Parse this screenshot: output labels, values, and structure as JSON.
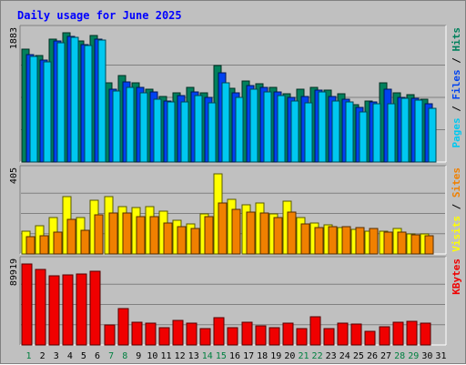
{
  "chart_data": {
    "type": "bar",
    "title": "Daily usage for June 2025",
    "categories": [
      "1",
      "2",
      "3",
      "4",
      "5",
      "6",
      "7",
      "8",
      "9",
      "10",
      "11",
      "12",
      "13",
      "14",
      "15",
      "16",
      "17",
      "18",
      "19",
      "20",
      "21",
      "22",
      "23",
      "24",
      "25",
      "26",
      "27",
      "28",
      "29",
      "30",
      "31"
    ],
    "weekend_days": [
      "1",
      "7",
      "8",
      "14",
      "15",
      "21",
      "22",
      "28",
      "29"
    ],
    "panels": [
      {
        "name": "pages-files-hits",
        "ymax_label": "1883",
        "ylim": [
          0,
          1883
        ],
        "legend": [
          "Pages",
          "Files",
          "Hits"
        ],
        "series": [
          {
            "name": "Hits",
            "color": "#00805c",
            "values": [
              1642,
              1546,
              1792,
              1883,
              1765,
              1838,
              1150,
              1263,
              1157,
              1056,
              950,
              1010,
              1085,
              1005,
              1405,
              1074,
              1178,
              1138,
              1084,
              992,
              1064,
              1081,
              1046,
              1001,
              842,
              890,
              1157,
              1009,
              977,
              921,
              null
            ]
          },
          {
            "name": "Files",
            "color": "#0042f0",
            "values": [
              1565,
              1490,
              1760,
              1836,
              1706,
              1787,
              1056,
              1172,
              1086,
              1015,
              889,
              968,
              1024,
              942,
              1296,
              1006,
              1118,
              1086,
              1024,
              936,
              954,
              1048,
              949,
              916,
              792,
              872,
              1057,
              942,
              926,
              849,
              null
            ]
          },
          {
            "name": "Pages",
            "color": "#00c8f0",
            "values": [
              1532,
              1465,
              1743,
              1813,
              1692,
              1776,
              1030,
              1088,
              1002,
              918,
              880,
              880,
              963,
              857,
              1148,
              946,
              1058,
              1022,
              962,
              893,
              861,
              1019,
              890,
              870,
              735,
              845,
              850,
              930,
              898,
              776,
              null
            ]
          }
        ]
      },
      {
        "name": "visits-sites",
        "ymax_label": "405",
        "ylim": [
          0,
          405
        ],
        "legend": [
          "Visits",
          "Sites"
        ],
        "series": [
          {
            "name": "Visits",
            "color": "#ffff00",
            "values": [
              114,
              140,
              180,
              285,
              181,
              267,
              287,
              238,
              233,
              237,
              214,
              167,
              150,
              202,
              400,
              271,
              245,
              254,
              200,
              262,
              184,
              154,
              145,
              132,
              123,
              115,
              115,
              128,
              102,
              100,
              null
            ]
          },
          {
            "name": "Sites",
            "color": "#f08000",
            "values": [
              88,
              93,
              109,
              172,
              119,
              196,
              204,
              204,
              186,
              186,
              156,
              136,
              128,
              185,
              255,
              222,
              211,
              203,
              180,
              210,
              152,
              132,
              136,
              136,
              130,
              129,
              108,
              111,
              95,
              92,
              null
            ]
          }
        ]
      },
      {
        "name": "kbytes",
        "ymax_label": "89919",
        "ylim": [
          0,
          89919
        ],
        "legend": [
          "KBytes"
        ],
        "series": [
          {
            "name": "KBytes",
            "color": "#f00000",
            "values": [
              89919,
              83400,
              76700,
              77700,
              79000,
              82100,
              21800,
              40500,
              25700,
              24700,
              19000,
              27600,
              24100,
              17900,
              30000,
              19000,
              25300,
              21100,
              19600,
              24600,
              17700,
              31000,
              17700,
              23800,
              22800,
              15200,
              20100,
              25100,
              25900,
              24000,
              null
            ]
          }
        ]
      }
    ]
  }
}
